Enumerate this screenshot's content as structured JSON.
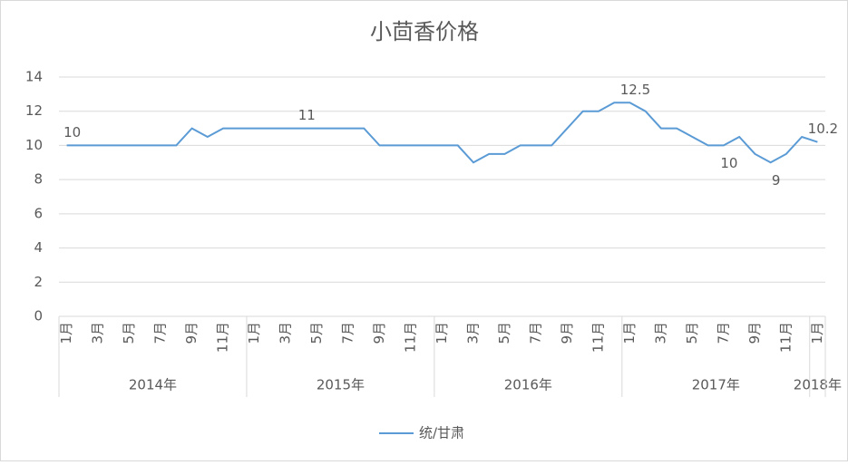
{
  "chart_data": {
    "type": "line",
    "title": "小茴香价格",
    "categories": [
      "1月",
      null,
      "3月",
      null,
      "5月",
      null,
      "7月",
      null,
      "9月",
      null,
      "11月",
      null,
      "1月",
      null,
      "3月",
      null,
      "5月",
      null,
      "7月",
      null,
      "9月",
      null,
      "11月",
      null,
      "1月",
      null,
      "3月",
      null,
      "5月",
      null,
      "7月",
      null,
      "9月",
      null,
      "11月",
      null,
      "1月",
      null,
      "3月",
      null,
      "5月",
      null,
      "7月",
      null,
      "9月",
      null,
      "11月",
      null,
      "1月"
    ],
    "x_groups": [
      "2014年",
      "2015年",
      "2016年",
      "2017年",
      "2018年"
    ],
    "series": [
      {
        "name": "统/甘肃",
        "color": "#5b9bd5",
        "values": [
          10,
          10,
          10,
          10,
          10,
          10,
          10,
          10,
          11,
          10.5,
          11,
          11,
          11,
          11,
          11,
          11,
          11,
          11,
          11,
          11,
          10,
          10,
          10,
          10,
          10,
          10,
          9,
          9.5,
          9.5,
          10,
          10,
          10,
          11,
          12,
          12,
          12.5,
          12.5,
          12,
          11,
          11,
          10.5,
          10,
          10,
          10.5,
          9.5,
          9,
          9.5,
          10.5,
          10.2
        ],
        "value_labels": [
          "10",
          null,
          null,
          null,
          null,
          null,
          null,
          null,
          null,
          null,
          null,
          null,
          null,
          null,
          null,
          "11",
          null,
          null,
          null,
          null,
          null,
          null,
          null,
          null,
          null,
          null,
          null,
          null,
          null,
          null,
          null,
          null,
          null,
          null,
          null,
          null,
          "12.5",
          null,
          null,
          null,
          null,
          null,
          "10",
          null,
          null,
          "9",
          null,
          null,
          "10.2"
        ]
      }
    ],
    "ylim": [
      0,
      14
    ],
    "yticks": [
      0,
      2,
      4,
      6,
      8,
      10,
      12,
      14
    ],
    "grid": true,
    "legend": "bottom"
  }
}
